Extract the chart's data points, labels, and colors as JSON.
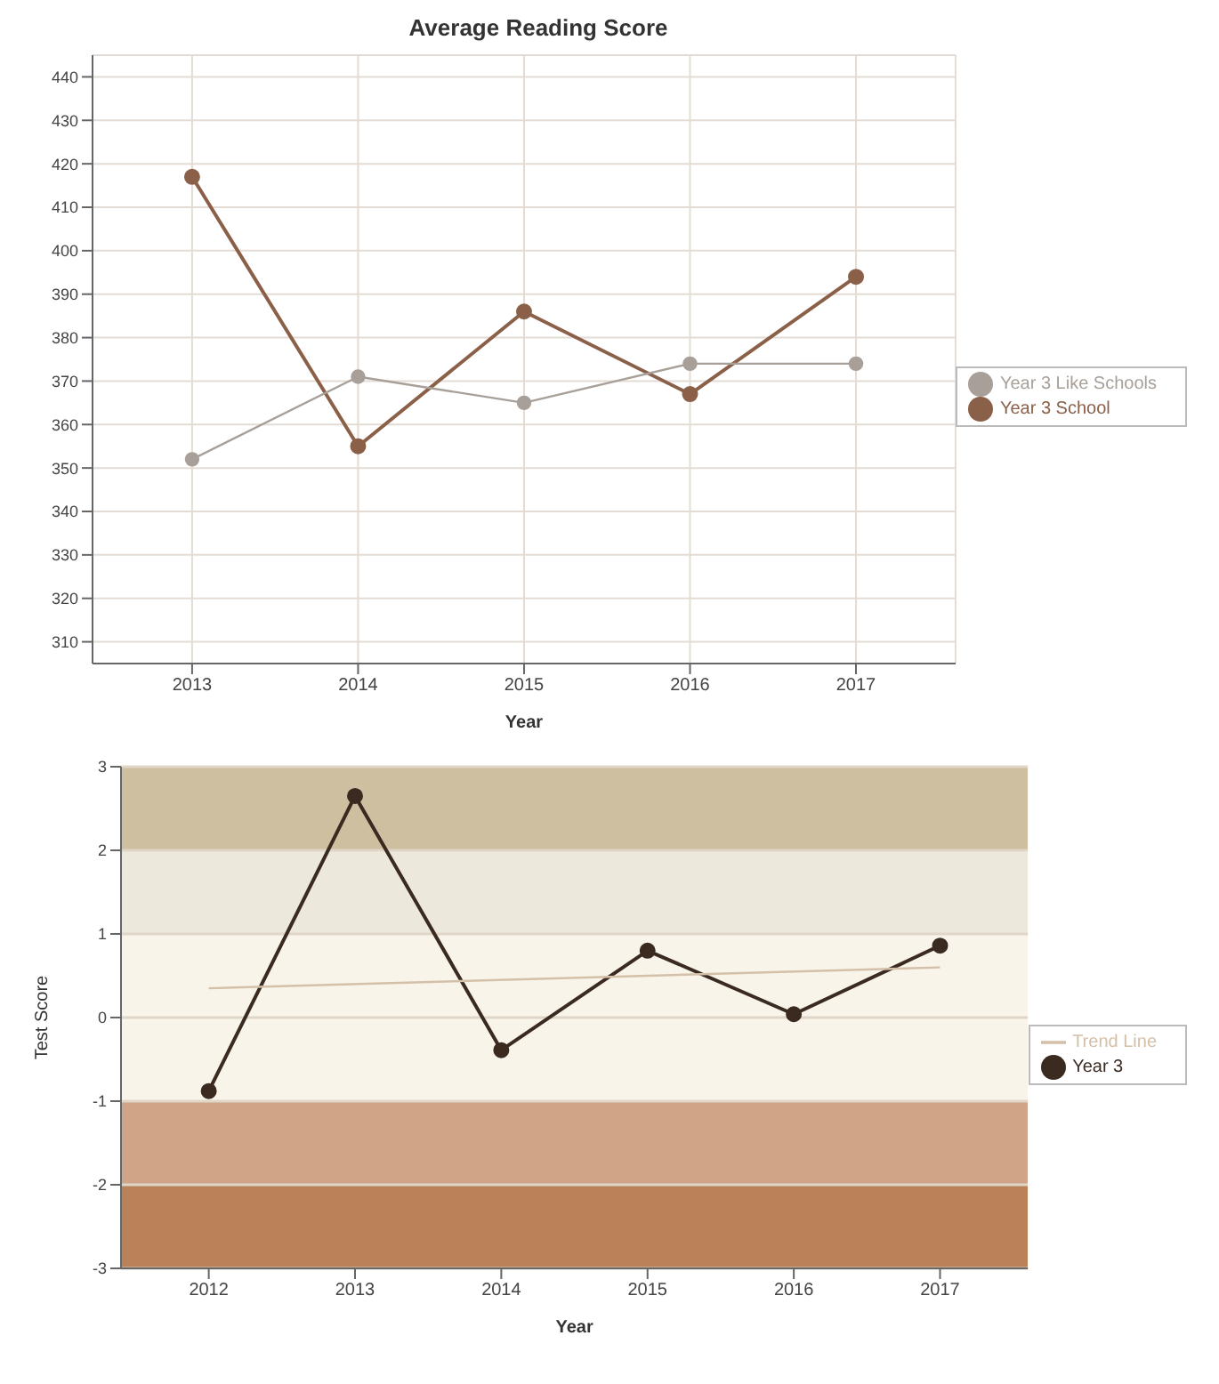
{
  "chart_data": [
    {
      "type": "line",
      "title": "Average Reading Score",
      "xlabel": "Year",
      "categories": [
        "2013",
        "2014",
        "2015",
        "2016",
        "2017"
      ],
      "series": [
        {
          "name": "Year 3 School",
          "color": "#8b6048",
          "values": [
            417,
            355,
            386,
            367,
            394
          ]
        },
        {
          "name": "Year 3 Like Schools",
          "color": "#a8a098",
          "values": [
            352,
            371,
            365,
            374,
            374
          ]
        }
      ],
      "ylim": [
        305,
        445
      ],
      "yticks": [
        310,
        320,
        330,
        340,
        350,
        360,
        370,
        380,
        390,
        400,
        410,
        420,
        430,
        440
      ],
      "grid": true,
      "legend": "right",
      "marker": "circle",
      "line_style": "solid"
    },
    {
      "type": "line",
      "xlabel": "Year",
      "ylabel": "Test Score",
      "x": [
        2012,
        2013,
        2014,
        2015,
        2016,
        2017
      ],
      "xlim": [
        2011.4,
        2017.6
      ],
      "xticks": [
        2012,
        2013,
        2014,
        2015,
        2016,
        2017
      ],
      "series": [
        {
          "name": "Year 3",
          "color": "#3a2a20",
          "values": [
            -0.88,
            2.65,
            -0.39,
            0.8,
            0.04,
            0.86
          ]
        },
        {
          "name": "Trend Line",
          "color": "#d4c0a8",
          "x": [
            2012,
            2017
          ],
          "values": [
            0.35,
            0.6
          ],
          "marker": "none"
        }
      ],
      "ylim": [
        -3,
        3
      ],
      "yticks": [
        -3,
        -2,
        -1,
        0,
        1,
        2,
        3
      ],
      "grid": "y",
      "legend": "right",
      "marker": "circle",
      "line_style": "solid",
      "bands": [
        {
          "axis": "y",
          "from": 2,
          "to": 3,
          "color": "#cdbf9f"
        },
        {
          "axis": "y",
          "from": 1,
          "to": 2,
          "color": "#ece8dc"
        },
        {
          "axis": "y",
          "from": -1,
          "to": 1,
          "color": "#f8f4ea"
        },
        {
          "axis": "y",
          "from": -2,
          "to": -1,
          "color": "#d0a487"
        },
        {
          "axis": "y",
          "from": -3,
          "to": -2,
          "color": "#b98259"
        }
      ]
    }
  ]
}
